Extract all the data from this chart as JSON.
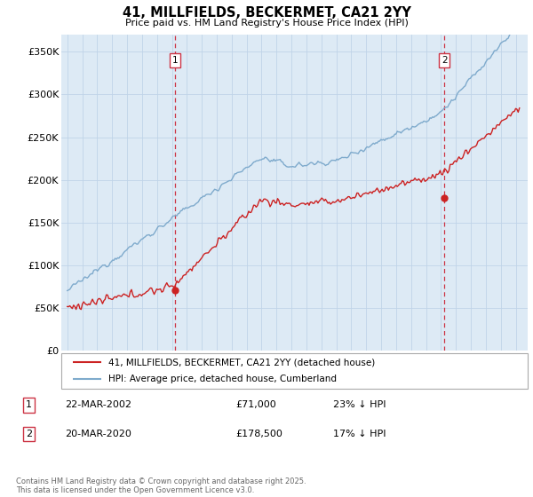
{
  "title": "41, MILLFIELDS, BECKERMET, CA21 2YY",
  "subtitle": "Price paid vs. HM Land Registry's House Price Index (HPI)",
  "ylabel_ticks": [
    "£0",
    "£50K",
    "£100K",
    "£150K",
    "£200K",
    "£250K",
    "£300K",
    "£350K"
  ],
  "ytick_values": [
    0,
    50000,
    100000,
    150000,
    200000,
    250000,
    300000,
    350000
  ],
  "ylim": [
    0,
    370000
  ],
  "xlim_start": 1994.6,
  "xlim_end": 2025.8,
  "hpi_color": "#7eaacc",
  "hpi_bg_color": "#ddeaf5",
  "price_color": "#cc2222",
  "vline_color": "#cc3344",
  "sale1_x": 2002.22,
  "sale1_y": 71000,
  "sale2_x": 2020.22,
  "sale2_y": 178500,
  "legend_label1": "41, MILLFIELDS, BECKERMET, CA21 2YY (detached house)",
  "legend_label2": "HPI: Average price, detached house, Cumberland",
  "footer": "Contains HM Land Registry data © Crown copyright and database right 2025.\nThis data is licensed under the Open Government Licence v3.0.",
  "background_color": "#ffffff",
  "plot_bg_color": "#ddeaf5",
  "grid_color": "#c0d4e8"
}
